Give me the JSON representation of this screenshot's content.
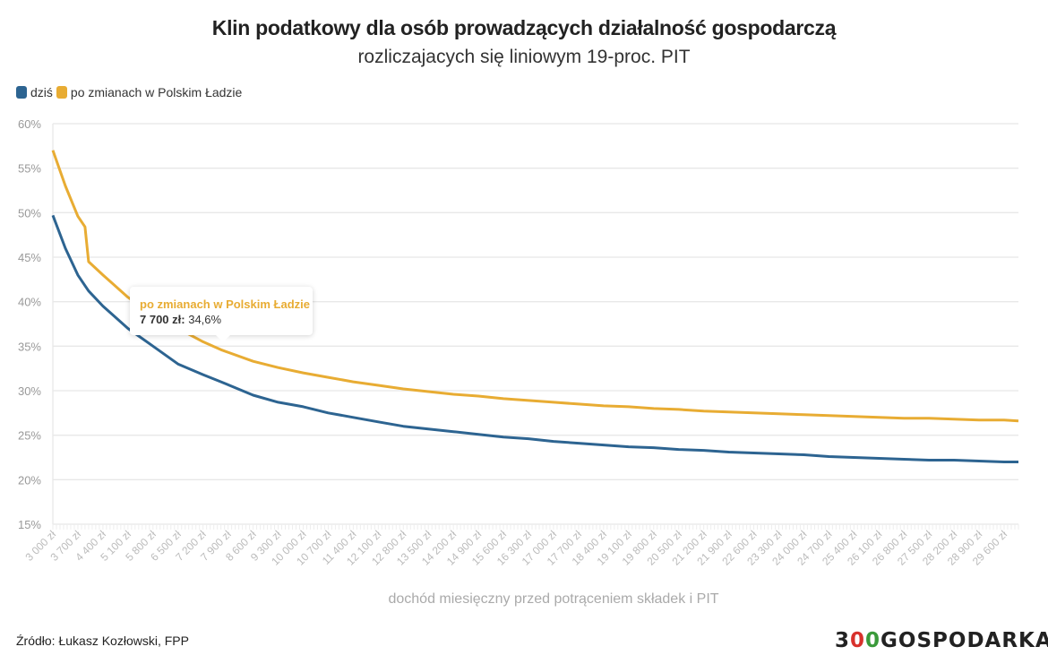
{
  "chart_data": {
    "type": "line",
    "title": "Klin podatkowy dla osób prowadzących działalność gospodarczą",
    "subtitle": "rozliczajacych się liniowym 19-proc. PIT",
    "xlabel": "dochód miesięczny przed potrąceniem składek i PIT",
    "ylabel": "",
    "xlim": [
      3000,
      30000
    ],
    "ylim": [
      15,
      60
    ],
    "yticks": [
      "15%",
      "20%",
      "25%",
      "30%",
      "35%",
      "40%",
      "45%",
      "50%",
      "55%",
      "60%"
    ],
    "xtick_labels": [
      "3 000 zł",
      "3 700 zł",
      "4 400 zł",
      "5 100 zł",
      "5 800 zł",
      "6 500 zł",
      "7 200 zł",
      "7 900 zł",
      "8 600 zł",
      "9 300 zł",
      "10 000 zł",
      "10 700 zł",
      "11 400 zł",
      "12 100 zł",
      "12 800 zł",
      "13 500 zł",
      "14 200 zł",
      "14 900 zł",
      "15 600 zł",
      "16 300 zł",
      "17 000 zł",
      "17 700 zł",
      "18 400 zł",
      "19 100 zł",
      "19 800 zł",
      "20 500 zł",
      "21 200 zł",
      "21 900 zł",
      "22 600 zł",
      "23 300 zł",
      "24 000 zł",
      "24 700 zł",
      "25 400 zł",
      "26 100 zł",
      "26 800 zł",
      "27 500 zł",
      "28 200 zł",
      "28 900 zł",
      "29 600 zł"
    ],
    "grid": true,
    "legend": "top-left",
    "x": [
      3000,
      3350,
      3700,
      3900,
      4000,
      4400,
      5100,
      5800,
      6500,
      7200,
      7700,
      8600,
      9300,
      10000,
      10700,
      11400,
      12100,
      12800,
      13500,
      14200,
      14900,
      15600,
      16300,
      17000,
      17700,
      18400,
      19100,
      19800,
      20500,
      21200,
      21900,
      22600,
      23300,
      24000,
      24700,
      25400,
      26100,
      26800,
      27500,
      28200,
      28900,
      29600,
      30000
    ],
    "series": [
      {
        "name": "dziś",
        "color": "#2d6491",
        "values": [
          49.7,
          46,
          43,
          41.8,
          41.2,
          39.5,
          37,
          35,
          33,
          31.8,
          31,
          29.5,
          28.7,
          28.2,
          27.5,
          27,
          26.5,
          26,
          25.7,
          25.4,
          25.1,
          24.8,
          24.6,
          24.3,
          24.1,
          23.9,
          23.7,
          23.6,
          23.4,
          23.3,
          23.1,
          23,
          22.9,
          22.8,
          22.6,
          22.5,
          22.4,
          22.3,
          22.2,
          22.2,
          22.1,
          22.0,
          22.0
        ]
      },
      {
        "name": "po zmianach w Polskim Ładzie",
        "color": "#e8ac33",
        "values": [
          57,
          53,
          49.6,
          48.4,
          44.5,
          43,
          40.5,
          38.5,
          37,
          35.5,
          34.6,
          33.3,
          32.6,
          32,
          31.5,
          31,
          30.6,
          30.2,
          29.9,
          29.6,
          29.4,
          29.1,
          28.9,
          28.7,
          28.5,
          28.3,
          28.2,
          28.0,
          27.9,
          27.7,
          27.6,
          27.5,
          27.4,
          27.3,
          27.2,
          27.1,
          27.0,
          26.9,
          26.9,
          26.8,
          26.7,
          26.7,
          26.6
        ]
      }
    ],
    "tooltip": {
      "series": "po zmianach w Polskim Ładzie",
      "label": "7 700 zł:",
      "value": "34,6%"
    }
  },
  "source": "Źródło: Łukasz Kozłowski, FPP",
  "logo": {
    "text": "300GOSPODARKA",
    "colors": [
      "#222222",
      "#d8312c",
      "#3a9a3a"
    ]
  }
}
